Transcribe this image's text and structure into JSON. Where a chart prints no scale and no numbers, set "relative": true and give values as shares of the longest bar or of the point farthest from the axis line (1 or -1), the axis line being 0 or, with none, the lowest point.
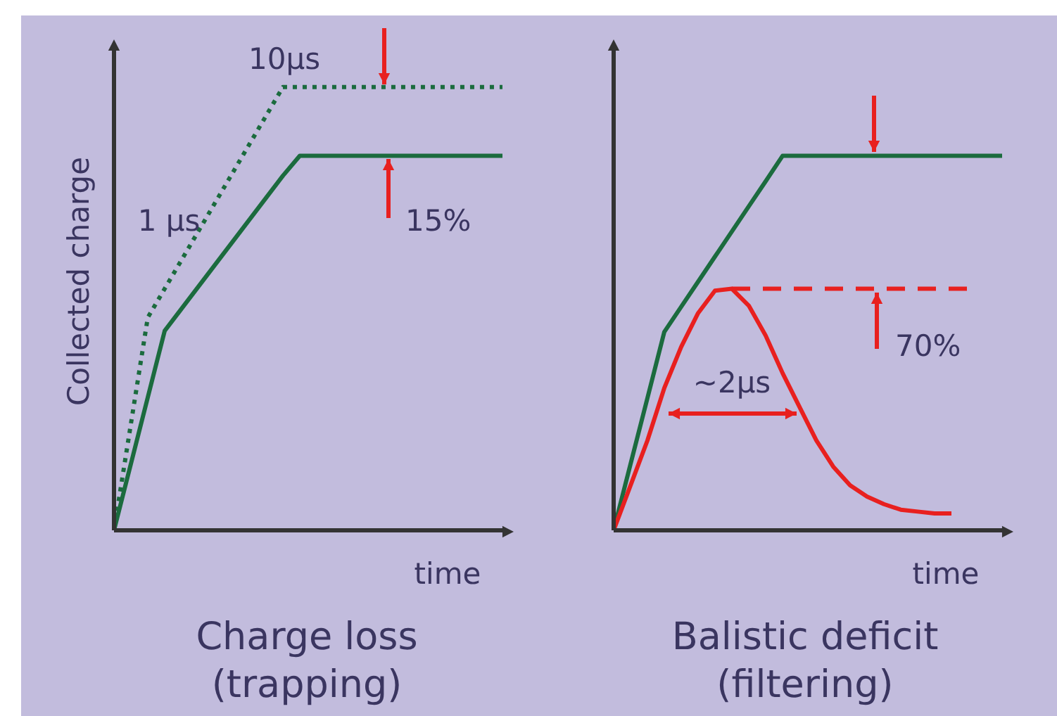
{
  "chart_data": [
    {
      "type": "line",
      "title": "Charge loss\n(trapping)",
      "xlabel": "time",
      "ylabel": "Collected charge",
      "relative": true,
      "categories": [
        null,
        null,
        null,
        null,
        null,
        null,
        null,
        null,
        null,
        null,
        null,
        null,
        null,
        null,
        null,
        null,
        null,
        null,
        null,
        null,
        null,
        null,
        null,
        null
      ],
      "series": [
        {
          "color": "#1b6b3e",
          "line_style": "dotted",
          "values": [
            0,
            0.24,
            0.48,
            0.545,
            0.61,
            0.675,
            0.74,
            0.805,
            0.87,
            0.935,
            1,
            1,
            1,
            1,
            1,
            1,
            1,
            1,
            1,
            1,
            1,
            1,
            1,
            1
          ]
        },
        {
          "color": "#1b6b3e",
          "line_style": "solid",
          "values": [
            0,
            0.15,
            0.3,
            0.45,
            0.5,
            0.55,
            0.6,
            0.65,
            0.7,
            0.75,
            0.8,
            0.845,
            0.845,
            0.845,
            0.845,
            0.845,
            0.845,
            0.845,
            0.845,
            0.845,
            0.845,
            0.845,
            0.845,
            0.845
          ]
        }
      ],
      "annotations": [
        "10μs",
        "1 μs",
        "15%"
      ]
    },
    {
      "type": "line",
      "title": "Balistic deficit\n(filtering)",
      "xlabel": "time",
      "relative": true,
      "categories": [
        null,
        null,
        null,
        null,
        null,
        null,
        null,
        null,
        null,
        null,
        null,
        null,
        null,
        null,
        null,
        null,
        null,
        null,
        null,
        null,
        null,
        null,
        null,
        null
      ],
      "series": [
        {
          "color": "#1b6b3e",
          "line_style": "solid",
          "values": [
            0,
            0.177,
            0.353,
            0.53,
            0.597,
            0.664,
            0.731,
            0.798,
            0.865,
            0.932,
            1,
            1,
            1,
            1,
            1,
            1,
            1,
            1,
            1,
            1,
            1,
            1,
            1,
            1
          ]
        },
        {
          "color": "#e8201f",
          "line_style": "solid",
          "values": [
            0,
            0.12,
            0.24,
            0.38,
            0.49,
            0.58,
            0.64,
            0.645,
            0.6,
            0.52,
            0.42,
            0.33,
            0.24,
            0.17,
            0.12,
            0.09,
            0.07,
            0.055,
            0.05,
            0.045,
            0.045,
            null,
            null,
            null
          ]
        },
        {
          "color": "#e8201f",
          "line_style": "dashed",
          "values": [
            null,
            null,
            null,
            null,
            null,
            null,
            null,
            0.645,
            0.645,
            0.645,
            0.645,
            0.645,
            0.645,
            0.645,
            0.645,
            0.645,
            0.645,
            0.645,
            0.645,
            0.645,
            0.645,
            0.645,
            null,
            null
          ]
        }
      ],
      "annotations": [
        "~2μs",
        "70%"
      ]
    }
  ]
}
